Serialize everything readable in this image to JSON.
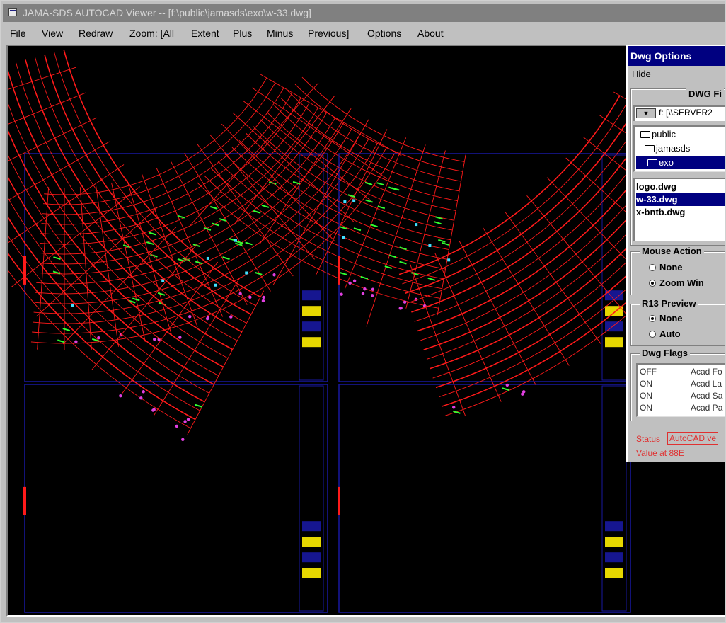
{
  "window": {
    "title": "JAMA-SDS AUTOCAD Viewer -- [f:\\public\\jamasds\\exo\\w-33.dwg]"
  },
  "menu": {
    "items": [
      "File",
      "View",
      "Redraw",
      "Zoom: [All",
      "Extent",
      "Plus",
      "Minus",
      "Previous]",
      "Options",
      "About"
    ]
  },
  "options_panel": {
    "title": "Dwg Options",
    "hide_label": "Hide",
    "dwg_files_label": "DWG Fi",
    "drive_value": "f: [\\\\SERVER2",
    "folders": [
      "public",
      "jamasds",
      "exo"
    ],
    "selected_folder": "exo",
    "files": [
      "logo.dwg",
      "w-33.dwg",
      "x-bntb.dwg"
    ],
    "selected_file": "w-33.dwg",
    "mouse_action": {
      "label": "Mouse Action",
      "options": [
        "None",
        "Zoom Win"
      ],
      "selected": "Zoom Win"
    },
    "r13_preview": {
      "label": "R13 Preview",
      "options": [
        "None",
        "Auto"
      ],
      "selected": "None"
    },
    "dwg_flags": {
      "label": "Dwg Flags",
      "rows": [
        {
          "value": "OFF",
          "name": "Acad Fo"
        },
        {
          "value": "ON",
          "name": "Acad La"
        },
        {
          "value": "ON",
          "name": "Acad Sa"
        },
        {
          "value": "ON",
          "name": "Acad Pa"
        }
      ]
    },
    "status_label": "Status",
    "status_value": "AutoCAD ve",
    "value_text": "Value at 88E"
  },
  "colors": {
    "canvas_bg": "#000000",
    "floor_red": "#ff1a1a",
    "column_magenta": "#e040e0",
    "dim_green": "#30ff30",
    "tag_cyan": "#40e0ff",
    "frame_blue": "#1818a0",
    "title_yellow": "#ffee00"
  }
}
